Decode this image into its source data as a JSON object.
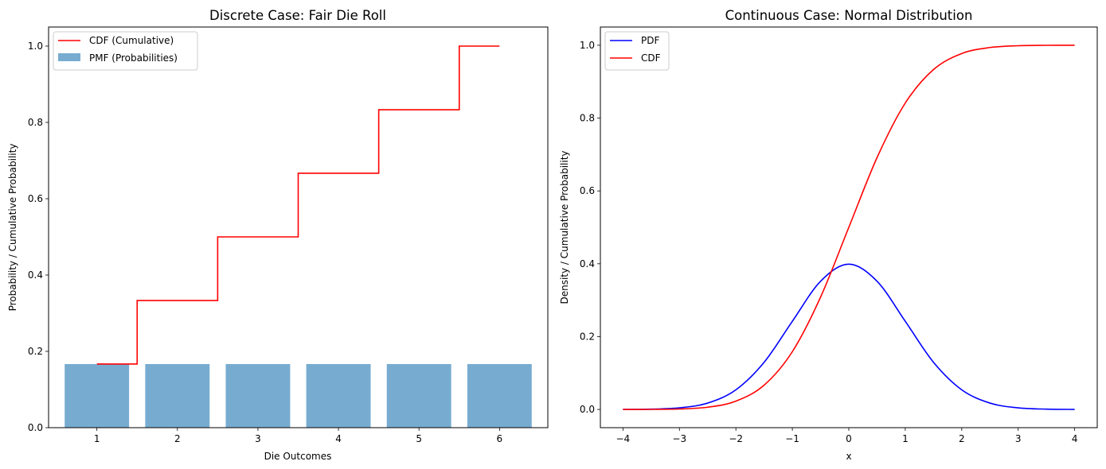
{
  "chart_data": [
    {
      "type": "bar",
      "title": "Discrete Case: Fair Die Roll",
      "xlabel": "Die Outcomes",
      "ylabel": "Probability / Cumulative Probability",
      "xlim": [
        0.4,
        6.6
      ],
      "ylim": [
        0,
        1.05
      ],
      "xticks": [
        1,
        2,
        3,
        4,
        5,
        6
      ],
      "xtick_labels": [
        "1",
        "2",
        "3",
        "4",
        "5",
        "6"
      ],
      "yticks": [
        0.0,
        0.2,
        0.4,
        0.6,
        0.8,
        1.0
      ],
      "ytick_labels": [
        "0.0",
        "0.2",
        "0.4",
        "0.6",
        "0.8",
        "1.0"
      ],
      "grid": false,
      "legend_position": "top-left",
      "bars": {
        "name": "PMF (Probabilities)",
        "color": "#77acd0",
        "categories": [
          1,
          2,
          3,
          4,
          5,
          6
        ],
        "values": [
          0.1667,
          0.1667,
          0.1667,
          0.1667,
          0.1667,
          0.1667
        ]
      },
      "step": {
        "name": "CDF (Cumulative)",
        "color": "#ff0000",
        "where": "mid",
        "x": [
          1,
          2,
          3,
          4,
          5,
          6
        ],
        "y": [
          0.1667,
          0.3333,
          0.5,
          0.6667,
          0.8333,
          1.0
        ]
      },
      "legend": [
        {
          "label": "CDF (Cumulative)",
          "color": "#ff0000",
          "kind": "line"
        },
        {
          "label": "PMF (Probabilities)",
          "color": "#77acd0",
          "kind": "patch"
        }
      ]
    },
    {
      "type": "line",
      "title": "Continuous Case: Normal Distribution",
      "xlabel": "x",
      "ylabel": "Density / Cumulative Probability",
      "xlim": [
        -4.4,
        4.4
      ],
      "ylim": [
        -0.05,
        1.05
      ],
      "xticks": [
        -4,
        -3,
        -2,
        -1,
        0,
        1,
        2,
        3,
        4
      ],
      "xtick_labels": [
        "−4",
        "−3",
        "−2",
        "−1",
        "0",
        "1",
        "2",
        "3",
        "4"
      ],
      "yticks": [
        0.0,
        0.2,
        0.4,
        0.6,
        0.8,
        1.0
      ],
      "ytick_labels": [
        "0.0",
        "0.2",
        "0.4",
        "0.6",
        "0.8",
        "1.0"
      ],
      "grid": false,
      "legend_position": "top-left",
      "x": [
        -4.0,
        -3.5,
        -3.0,
        -2.5,
        -2.0,
        -1.5,
        -1.0,
        -0.5,
        0.0,
        0.5,
        1.0,
        1.5,
        2.0,
        2.5,
        3.0,
        3.5,
        4.0
      ],
      "series": [
        {
          "name": "PDF",
          "color": "#0000ff",
          "values": [
            0.0001,
            0.0009,
            0.0044,
            0.0175,
            0.054,
            0.1295,
            0.242,
            0.3521,
            0.3989,
            0.3521,
            0.242,
            0.1295,
            0.054,
            0.0175,
            0.0044,
            0.0009,
            0.0001
          ]
        },
        {
          "name": "CDF",
          "color": "#ff0000",
          "values": [
            0.0,
            0.0002,
            0.0013,
            0.0062,
            0.0228,
            0.0668,
            0.1587,
            0.3085,
            0.5,
            0.6915,
            0.8413,
            0.9332,
            0.9772,
            0.9938,
            0.9987,
            0.9998,
            1.0
          ]
        }
      ]
    }
  ]
}
